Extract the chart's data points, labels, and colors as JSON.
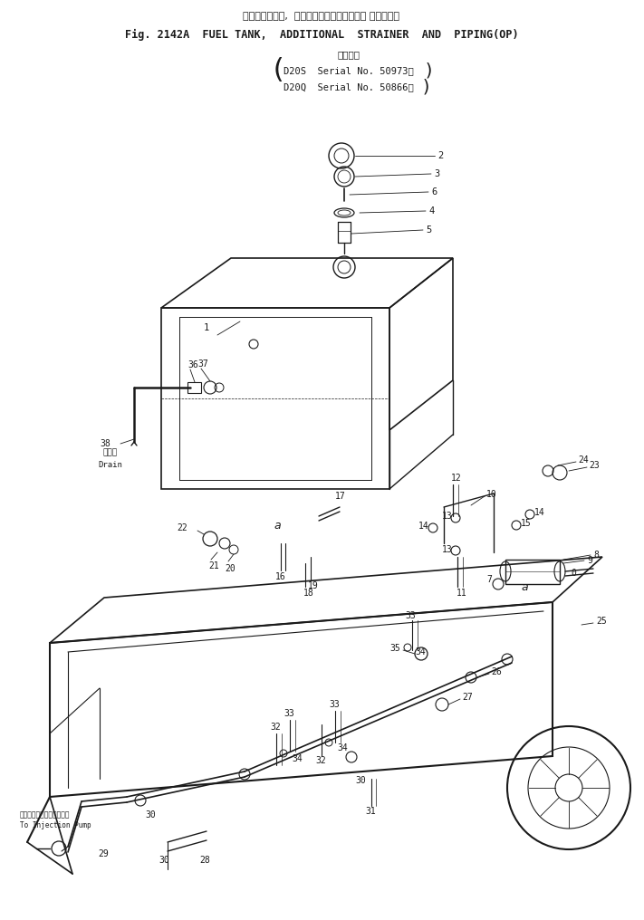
{
  "title_jp": "フゥエルタンク,  増　設　ストレーナおよび パイピング",
  "title_en": "Fig. 2142A  FUEL TANK,  ADDITIONAL  STRAINER  AND  PIPING(OP)",
  "subtitle_jp": "適用号機",
  "serial1": "D20S  Serial No. 50973～",
  "serial2": "D20Q  Serial No. 50866～",
  "bg_color": "#ffffff",
  "line_color": "#1a1a1a",
  "fig_width": 7.11,
  "fig_height": 10.16,
  "dpi": 100,
  "label_drain_jp": "ドレン",
  "label_drain_en": "Drain",
  "label_injection_jp": "インジェクションポンプへ",
  "label_injection_en": "To Injection Pump"
}
